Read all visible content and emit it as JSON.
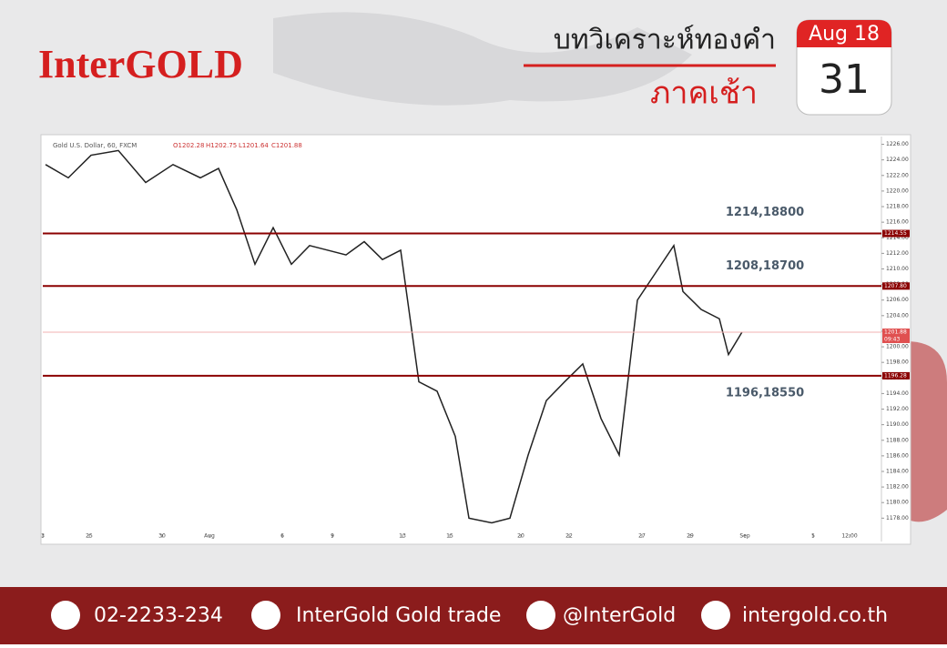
{
  "header": {
    "brand": "InterGOLD",
    "title": "บทวิเคราะห์ทองคำ",
    "subtitle": "ภาคเช้า",
    "month": "Aug 18",
    "day": "31"
  },
  "chart_data": {
    "type": "line",
    "title": "Gold U.S. Dollar, 60, FXCM",
    "ohlc": [
      "O1202.28",
      "H1202.75",
      "L1201.64",
      "C1201.88"
    ],
    "x": [
      3,
      28,
      53,
      83,
      113,
      143,
      173,
      193,
      213,
      233,
      253,
      273,
      293,
      313,
      333,
      353,
      373,
      393,
      413,
      433,
      453,
      468,
      493,
      513,
      533,
      553,
      573,
      593,
      613,
      633,
      653,
      673,
      693,
      703,
      723,
      743,
      753,
      768
    ],
    "series": [
      {
        "color": "#222222",
        "values": [
          1223.4,
          1221.7,
          1224.6,
          1225.2,
          1221.1,
          1223.4,
          1221.7,
          1222.9,
          1217.6,
          1210.6,
          1215.3,
          1210.6,
          1213,
          1212.4,
          1211.8,
          1213.5,
          1211.2,
          1212.4,
          1195.5,
          1194.3,
          1188.5,
          1178,
          1177.4,
          1178,
          1186.1,
          1193.1,
          1195.5,
          1197.8,
          1190.8,
          1186.1,
          1206,
          1209.5,
          1213,
          1207.1,
          1204.8,
          1203.6,
          1199,
          1201.9
        ]
      }
    ],
    "xlim": [
      0,
      921
    ],
    "xticks": [
      {
        "value": 0,
        "label": "3"
      },
      {
        "value": 51,
        "label": "25"
      },
      {
        "value": 131,
        "label": "30"
      },
      {
        "value": 183,
        "label": "Aug"
      },
      {
        "value": 263,
        "label": "6"
      },
      {
        "value": 318,
        "label": "9"
      },
      {
        "value": 395,
        "label": "13"
      },
      {
        "value": 447,
        "label": "15"
      },
      {
        "value": 525,
        "label": "20"
      },
      {
        "value": 578,
        "label": "22"
      },
      {
        "value": 658,
        "label": "27"
      },
      {
        "value": 711,
        "label": "29"
      },
      {
        "value": 771,
        "label": "Sep"
      },
      {
        "value": 846,
        "label": "5"
      },
      {
        "value": 886,
        "label": "12:00"
      }
    ],
    "ylim": [
      1175,
      1227
    ],
    "yticks": [
      {
        "value": 1178,
        "label": "1178.00"
      },
      {
        "value": 1180,
        "label": "1180.00"
      },
      {
        "value": 1182,
        "label": "1182.00"
      },
      {
        "value": 1184,
        "label": "1184.00"
      },
      {
        "value": 1186,
        "label": "1186.00"
      },
      {
        "value": 1188,
        "label": "1188.00"
      },
      {
        "value": 1190,
        "label": "1190.00"
      },
      {
        "value": 1192,
        "label": "1192.00"
      },
      {
        "value": 1194,
        "label": "1194.00"
      },
      {
        "value": 1196,
        "label": "1196.00"
      },
      {
        "value": 1198,
        "label": "1198.00"
      },
      {
        "value": 1200,
        "label": "1200.00"
      },
      {
        "value": 1202,
        "label": "1202.00"
      },
      {
        "value": 1204,
        "label": "1204.00"
      },
      {
        "value": 1206,
        "label": "1206.00"
      },
      {
        "value": 1208,
        "label": "1208.00"
      },
      {
        "value": 1210,
        "label": "1210.00"
      },
      {
        "value": 1212,
        "label": "1212.00"
      },
      {
        "value": 1214,
        "label": "1214.00"
      },
      {
        "value": 1216,
        "label": "1216.00"
      },
      {
        "value": 1218,
        "label": "1218.00"
      },
      {
        "value": 1220,
        "label": "1220.00"
      },
      {
        "value": 1222,
        "label": "1222.00"
      },
      {
        "value": 1224,
        "label": "1224.00"
      },
      {
        "value": 1226,
        "label": "1226.00"
      }
    ],
    "levels": [
      {
        "value": 1214.55,
        "label": "1214.55",
        "annotation": "1214,18800"
      },
      {
        "value": 1207.8,
        "label": "1207.80",
        "annotation": "1208,18700"
      },
      {
        "value": 1196.28,
        "label": "1196.28",
        "annotation": "1196,18550"
      }
    ],
    "level_color": "#8b0000",
    "last_price": {
      "value": 1201.88,
      "label": "1201.88"
    },
    "countdown": "09:43"
  },
  "footer": {
    "phone": "02-2233-234",
    "facebook": "InterGold Gold trade",
    "line": "@InterGold",
    "web": "intergold.co.th"
  }
}
